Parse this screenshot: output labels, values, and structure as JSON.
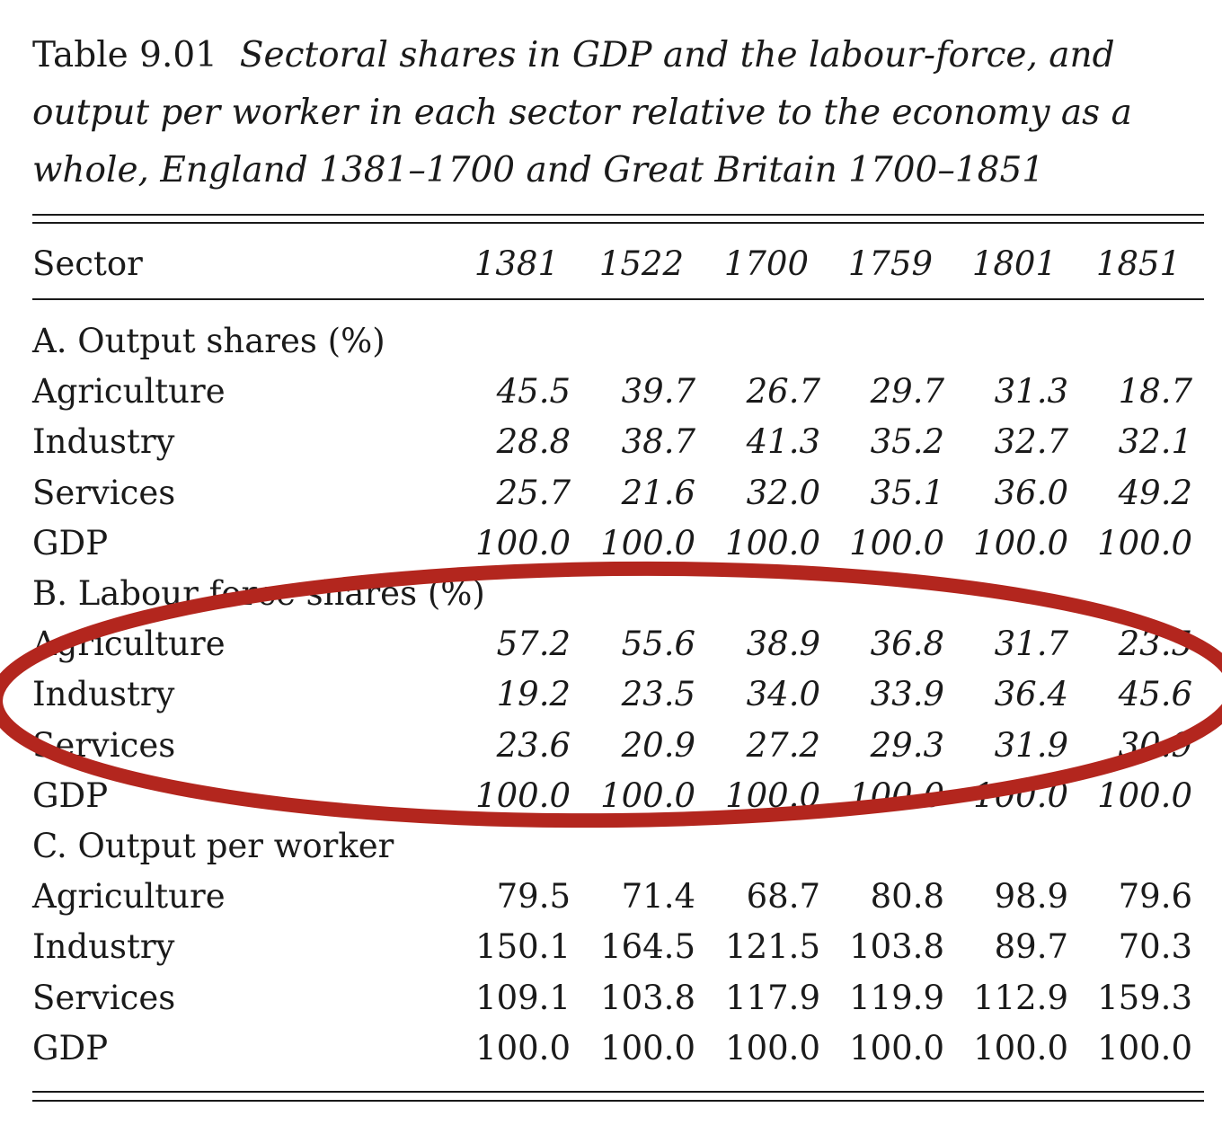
{
  "caption": {
    "label": "Table 9.01",
    "title": "Sectoral shares in GDP and the labour-force, and output per worker in each sector relative to the economy as a whole, England 1381–1700 and Great Britain 1700–1851"
  },
  "header": {
    "sector_label": "Sector",
    "years": [
      "1381",
      "1522",
      "1700",
      "1759",
      "1801",
      "1851"
    ]
  },
  "sections": [
    {
      "title": "A. Output shares (%)",
      "italic_values": true,
      "rows": [
        {
          "label": "Agriculture",
          "values": [
            "45.5",
            "39.7",
            "26.7",
            "29.7",
            "31.3",
            "18.7"
          ]
        },
        {
          "label": "Industry",
          "values": [
            "28.8",
            "38.7",
            "41.3",
            "35.2",
            "32.7",
            "32.1"
          ]
        },
        {
          "label": "Services",
          "values": [
            "25.7",
            "21.6",
            "32.0",
            "35.1",
            "36.0",
            "49.2"
          ]
        },
        {
          "label": "GDP",
          "values": [
            "100.0",
            "100.0",
            "100.0",
            "100.0",
            "100.0",
            "100.0"
          ]
        }
      ]
    },
    {
      "title": "B. Labour force shares (%)",
      "italic_values": true,
      "rows": [
        {
          "label": "Agriculture",
          "values": [
            "57.2",
            "55.6",
            "38.9",
            "36.8",
            "31.7",
            "23.5"
          ]
        },
        {
          "label": "Industry",
          "values": [
            "19.2",
            "23.5",
            "34.0",
            "33.9",
            "36.4",
            "45.6"
          ]
        },
        {
          "label": "Services",
          "values": [
            "23.6",
            "20.9",
            "27.2",
            "29.3",
            "31.9",
            "30.9"
          ]
        },
        {
          "label": "GDP",
          "values": [
            "100.0",
            "100.0",
            "100.0",
            "100.0",
            "100.0",
            "100.0"
          ]
        }
      ]
    },
    {
      "title": "C. Output per worker",
      "italic_values": false,
      "rows": [
        {
          "label": "Agriculture",
          "values": [
            "79.5",
            "71.4",
            "68.7",
            "80.8",
            "98.9",
            "79.6"
          ]
        },
        {
          "label": "Industry",
          "values": [
            "150.1",
            "164.5",
            "121.5",
            "103.8",
            "89.7",
            "70.3"
          ]
        },
        {
          "label": "Services",
          "values": [
            "109.1",
            "103.8",
            "117.9",
            "119.9",
            "112.9",
            "159.3"
          ]
        },
        {
          "label": "GDP",
          "values": [
            "100.0",
            "100.0",
            "100.0",
            "100.0",
            "100.0",
            "100.0"
          ]
        }
      ]
    }
  ],
  "annotation": {
    "shape": "ellipse",
    "color": "#b3261e",
    "target": "B. Labour force shares (%)"
  }
}
